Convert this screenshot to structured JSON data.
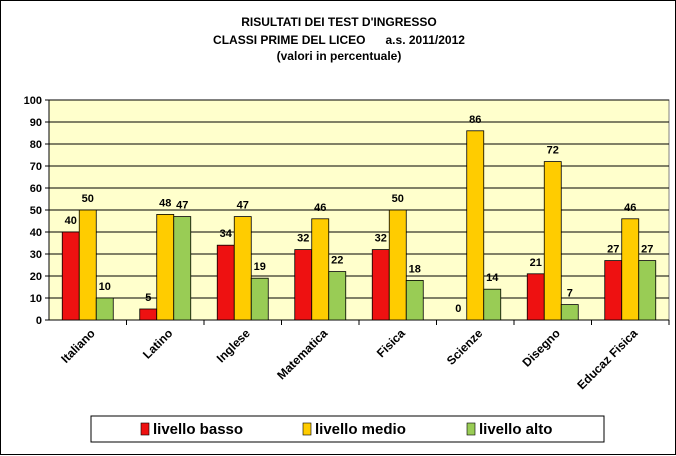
{
  "chart_data": {
    "type": "bar",
    "title_lines": [
      "RISULTATI DEI TEST D'INGRESSO",
      "CLASSI PRIME DEL LICEO      a.s. 2011/2012",
      "(valori in percentuale)"
    ],
    "categories": [
      "Italiano",
      "Latino",
      "Inglese",
      "Matematica",
      "Fisica",
      "Scienze",
      "Disegno",
      "Educaz Fisica"
    ],
    "series": [
      {
        "name": "livello basso",
        "color": "#ee1111",
        "values": [
          40,
          5,
          34,
          32,
          32,
          0,
          21,
          27
        ]
      },
      {
        "name": "livello medio",
        "color": "#ffcc00",
        "values": [
          50,
          48,
          47,
          46,
          50,
          86,
          72,
          46
        ]
      },
      {
        "name": "livello alto",
        "color": "#99cc55",
        "values": [
          10,
          47,
          19,
          22,
          18,
          14,
          7,
          27
        ]
      }
    ],
    "ylim": [
      0,
      100
    ],
    "yticks": [
      0,
      10,
      20,
      30,
      40,
      50,
      60,
      70,
      80,
      90,
      100
    ],
    "plot_background": "#ffffcc",
    "grid": true,
    "legend_position": "bottom",
    "data_labels": true
  }
}
